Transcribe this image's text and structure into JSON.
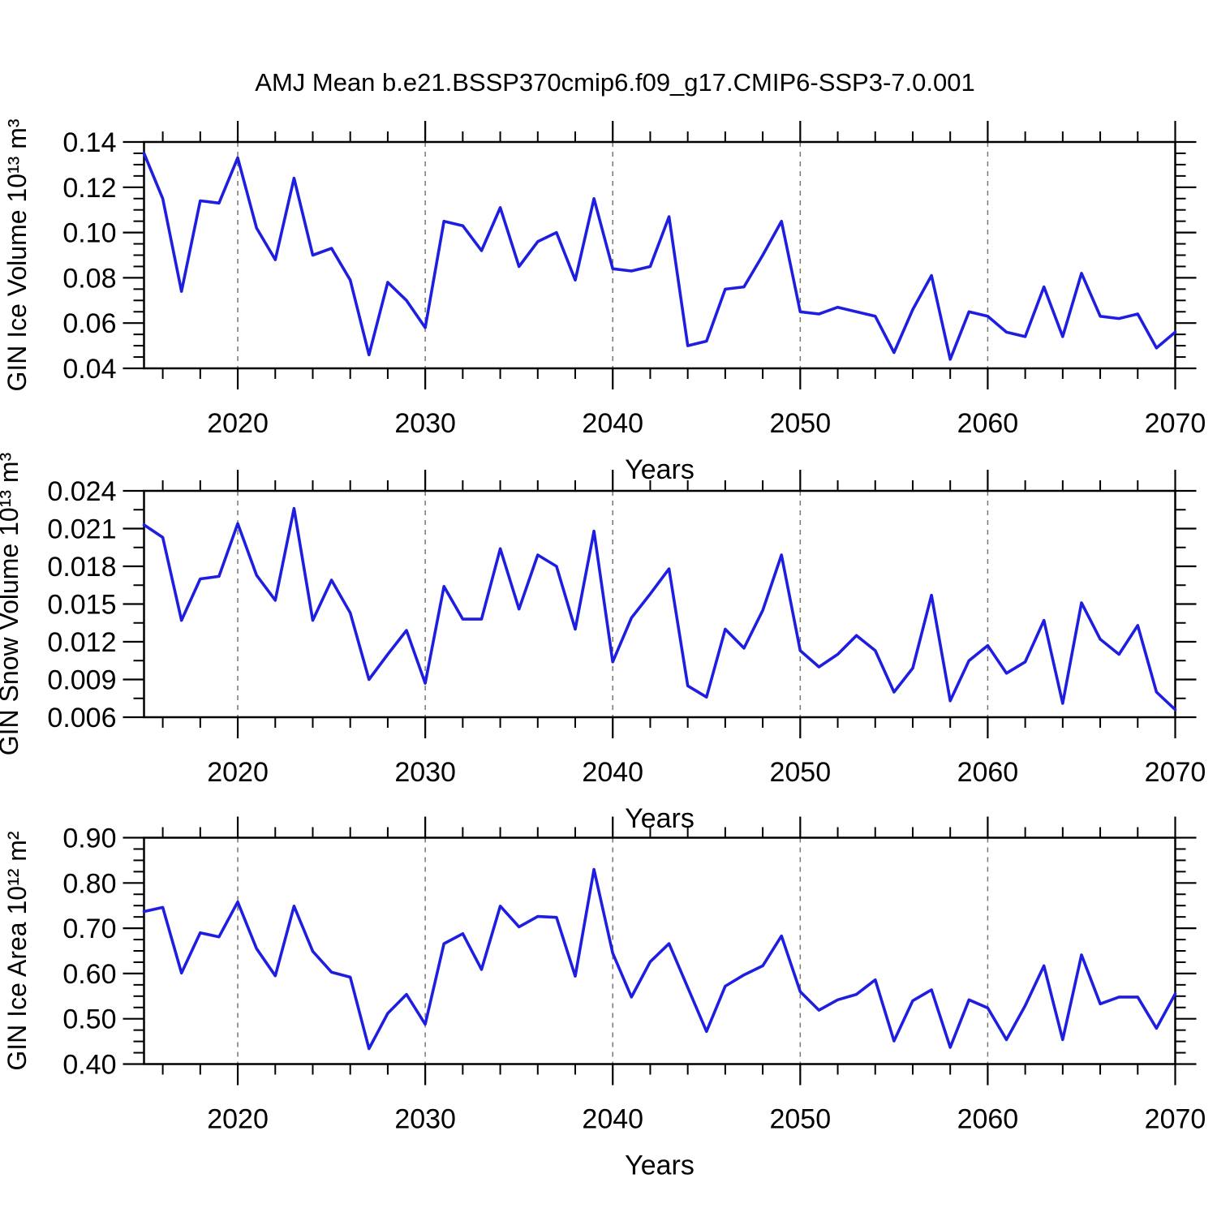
{
  "title": "AMJ Mean b.e21.BSSP370cmip6.f09_g17.CMIP6-SSP3-7.0.001",
  "xlabel": "Years",
  "years": [
    2015,
    2016,
    2017,
    2018,
    2019,
    2020,
    2021,
    2022,
    2023,
    2024,
    2025,
    2026,
    2027,
    2028,
    2029,
    2030,
    2031,
    2032,
    2033,
    2034,
    2035,
    2036,
    2037,
    2038,
    2039,
    2040,
    2041,
    2042,
    2043,
    2044,
    2045,
    2046,
    2047,
    2048,
    2049,
    2050,
    2051,
    2052,
    2053,
    2054,
    2055,
    2056,
    2057,
    2058,
    2059,
    2060,
    2061,
    2062,
    2063,
    2064,
    2065,
    2066,
    2067,
    2068,
    2069,
    2070
  ],
  "x_axis": {
    "xlim": [
      2015,
      2070
    ],
    "major_ticks": [
      2020,
      2030,
      2040,
      2050,
      2060,
      2070
    ],
    "major_tick_labels": [
      "2020",
      "2030",
      "2040",
      "2050",
      "2060",
      "2070"
    ],
    "minor_tick_step_years": 2,
    "gridline_years": [
      2020,
      2030,
      2040,
      2050,
      2060
    ]
  },
  "colors": {
    "line": "#1e1ee0",
    "grid": "#777777",
    "axis": "#000000",
    "text": "#000000",
    "background": "#ffffff"
  },
  "chart_data": [
    {
      "type": "line",
      "name": "gin-ice-volume",
      "ylabel": "GIN Ice Volume 10¹³ m³",
      "xlabel": "Years",
      "ylim": [
        0.04,
        0.14
      ],
      "ytick_values": [
        0.04,
        0.06,
        0.08,
        0.1,
        0.12,
        0.14
      ],
      "ytick_labels": [
        "0.04",
        "0.06",
        "0.08",
        "0.10",
        "0.12",
        "0.14"
      ],
      "y_minor_step": 0.005,
      "grid": "vertical-dashed",
      "legend": "none",
      "values": [
        0.135,
        0.115,
        0.074,
        0.114,
        0.113,
        0.133,
        0.102,
        0.088,
        0.124,
        0.09,
        0.093,
        0.079,
        0.046,
        0.078,
        0.07,
        0.058,
        0.105,
        0.103,
        0.092,
        0.111,
        0.085,
        0.096,
        0.1,
        0.079,
        0.115,
        0.084,
        0.083,
        0.085,
        0.107,
        0.05,
        0.052,
        0.075,
        0.076,
        0.09,
        0.105,
        0.065,
        0.064,
        0.067,
        0.065,
        0.063,
        0.047,
        0.066,
        0.081,
        0.044,
        0.065,
        0.063,
        0.056,
        0.054,
        0.076,
        0.054,
        0.082,
        0.063,
        0.062,
        0.064,
        0.049,
        0.056
      ]
    },
    {
      "type": "line",
      "name": "gin-snow-volume",
      "ylabel": "GIN Snow Volume 10¹³ m³",
      "xlabel": "Years",
      "ylim": [
        0.006,
        0.024
      ],
      "ytick_values": [
        0.006,
        0.009,
        0.012,
        0.015,
        0.018,
        0.021,
        0.024
      ],
      "ytick_labels": [
        "0.006",
        "0.009",
        "0.012",
        "0.015",
        "0.018",
        "0.021",
        "0.024"
      ],
      "y_minor_step": 0.0015,
      "grid": "vertical-dashed",
      "legend": "none",
      "values": [
        0.0213,
        0.0203,
        0.0137,
        0.017,
        0.0172,
        0.0214,
        0.0173,
        0.0153,
        0.0226,
        0.0137,
        0.0169,
        0.0143,
        0.009,
        0.011,
        0.0129,
        0.0087,
        0.0164,
        0.0138,
        0.0138,
        0.0194,
        0.0146,
        0.0189,
        0.018,
        0.013,
        0.0208,
        0.0104,
        0.0139,
        0.0158,
        0.0178,
        0.0085,
        0.0076,
        0.013,
        0.0115,
        0.0145,
        0.0189,
        0.0113,
        0.01,
        0.011,
        0.0125,
        0.0113,
        0.008,
        0.0099,
        0.0157,
        0.0073,
        0.0105,
        0.0117,
        0.0095,
        0.0104,
        0.0137,
        0.0071,
        0.0151,
        0.0122,
        0.011,
        0.0133,
        0.008,
        0.0066
      ]
    },
    {
      "type": "line",
      "name": "gin-ice-area",
      "ylabel": "GIN Ice Area 10¹² m²",
      "xlabel": "Years",
      "ylim": [
        0.4,
        0.9
      ],
      "ytick_values": [
        0.4,
        0.5,
        0.6,
        0.7,
        0.8,
        0.9
      ],
      "ytick_labels": [
        "0.40",
        "0.50",
        "0.60",
        "0.70",
        "0.80",
        "0.90"
      ],
      "y_minor_step": 0.025,
      "grid": "vertical-dashed",
      "legend": "none",
      "values": [
        0.737,
        0.746,
        0.601,
        0.69,
        0.681,
        0.758,
        0.655,
        0.595,
        0.749,
        0.649,
        0.603,
        0.592,
        0.434,
        0.512,
        0.554,
        0.488,
        0.666,
        0.688,
        0.609,
        0.749,
        0.703,
        0.726,
        0.724,
        0.594,
        0.83,
        0.645,
        0.548,
        0.626,
        0.666,
        0.569,
        0.472,
        0.572,
        0.597,
        0.617,
        0.683,
        0.56,
        0.519,
        0.542,
        0.554,
        0.586,
        0.451,
        0.54,
        0.564,
        0.437,
        0.542,
        0.524,
        0.454,
        0.529,
        0.617,
        0.454,
        0.641,
        0.533,
        0.548,
        0.548,
        0.479,
        0.555
      ]
    }
  ]
}
